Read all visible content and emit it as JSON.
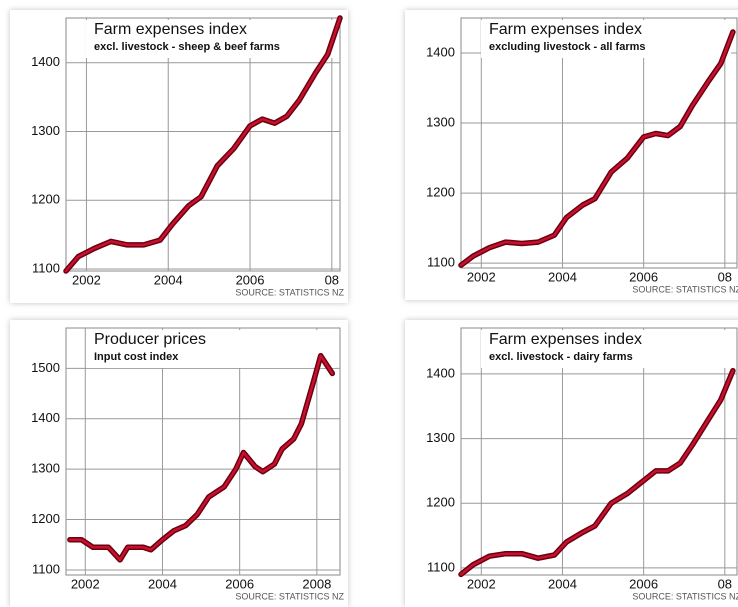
{
  "chart_data": [
    {
      "type": "line",
      "title": "Farm expenses index",
      "subtitle": "excl. livestock - sheep & beef farms",
      "source": "SOURCE: STATISTICS NZ",
      "x": [
        2001.5,
        2001.8,
        2002.2,
        2002.6,
        2003.0,
        2003.4,
        2003.8,
        2004.1,
        2004.5,
        2004.8,
        2005.2,
        2005.6,
        2006.0,
        2006.3,
        2006.6,
        2006.9,
        2007.2,
        2007.6,
        2007.9,
        2008.2
      ],
      "values": [
        1097,
        1118,
        1130,
        1140,
        1135,
        1135,
        1142,
        1165,
        1192,
        1205,
        1250,
        1275,
        1308,
        1318,
        1312,
        1322,
        1345,
        1385,
        1412,
        1465
      ],
      "color": "#c8102e",
      "xlim": [
        2001.5,
        2008.2
      ],
      "ylim": [
        1097,
        1465
      ],
      "xticks": [
        2002,
        2004,
        2006,
        {
          "value": 2008,
          "label": "08"
        }
      ],
      "yticks": [
        1100,
        1200,
        1300,
        1400
      ],
      "grid": true
    },
    {
      "type": "line",
      "title": "Farm expenses index",
      "subtitle": "excluding livestock - all farms",
      "source": "SOURCE: STATISTICS NZ",
      "x": [
        2001.5,
        2001.8,
        2002.2,
        2002.6,
        2003.0,
        2003.4,
        2003.8,
        2004.1,
        2004.5,
        2004.8,
        2005.2,
        2005.6,
        2006.0,
        2006.3,
        2006.6,
        2006.9,
        2007.2,
        2007.6,
        2007.9,
        2008.2
      ],
      "values": [
        1097,
        1110,
        1122,
        1130,
        1128,
        1130,
        1140,
        1165,
        1183,
        1192,
        1230,
        1250,
        1280,
        1285,
        1282,
        1295,
        1325,
        1360,
        1385,
        1430
      ],
      "color": "#c8102e",
      "xlim": [
        2001.5,
        2008.3
      ],
      "ylim": [
        1093,
        1450
      ],
      "xticks": [
        2002,
        2004,
        2006,
        {
          "value": 2008,
          "label": "08"
        }
      ],
      "yticks": [
        1100,
        1200,
        1300,
        1400
      ],
      "grid": true
    },
    {
      "type": "line",
      "title": "Producer prices",
      "subtitle": "Input cost index",
      "source": "SOURCE: STATISTICS NZ",
      "x": [
        2001.6,
        2001.9,
        2002.2,
        2002.6,
        2002.9,
        2003.1,
        2003.5,
        2003.7,
        2004.0,
        2004.3,
        2004.6,
        2004.9,
        2005.2,
        2005.6,
        2005.9,
        2006.1,
        2006.4,
        2006.6,
        2006.9,
        2007.1,
        2007.4,
        2007.6,
        2007.9,
        2008.1,
        2008.4
      ],
      "values": [
        1160,
        1160,
        1145,
        1145,
        1120,
        1145,
        1145,
        1140,
        1160,
        1178,
        1188,
        1210,
        1245,
        1265,
        1300,
        1333,
        1305,
        1295,
        1310,
        1340,
        1360,
        1390,
        1470,
        1525,
        1490
      ],
      "color": "#c8102e",
      "xlim": [
        2001.5,
        2008.6
      ],
      "ylim": [
        1090,
        1580
      ],
      "xticks": [
        2002,
        2004,
        2006,
        2008
      ],
      "yticks": [
        1100,
        1200,
        1300,
        1400,
        1500
      ],
      "grid": true
    },
    {
      "type": "line",
      "title": "Farm expenses index",
      "subtitle": "excl. livestock - dairy farms",
      "source": "SOURCE: STATISTICS NZ",
      "x": [
        2001.5,
        2001.8,
        2002.2,
        2002.6,
        2003.0,
        2003.4,
        2003.8,
        2004.1,
        2004.5,
        2004.8,
        2005.2,
        2005.6,
        2006.0,
        2006.3,
        2006.6,
        2006.9,
        2007.2,
        2007.6,
        2007.9,
        2008.2
      ],
      "values": [
        1090,
        1105,
        1118,
        1122,
        1122,
        1115,
        1120,
        1140,
        1155,
        1165,
        1200,
        1215,
        1235,
        1250,
        1250,
        1262,
        1290,
        1330,
        1360,
        1405
      ],
      "color": "#c8102e",
      "xlim": [
        2001.5,
        2008.3
      ],
      "ylim": [
        1089,
        1471
      ],
      "xticks": [
        2002,
        2004,
        2006,
        {
          "value": 2008,
          "label": "08"
        }
      ],
      "yticks": [
        1100,
        1200,
        1300,
        1400
      ],
      "grid": true
    }
  ]
}
